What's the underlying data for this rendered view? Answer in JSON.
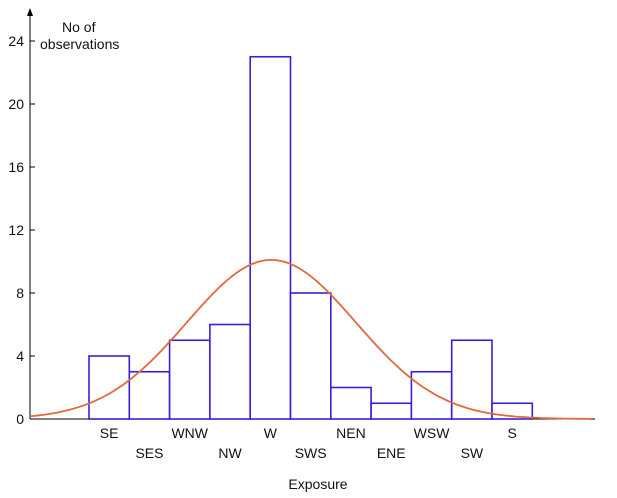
{
  "chart_data": {
    "type": "bar",
    "xlabel": "Exposure",
    "ylabel": "No of\nobservations",
    "ylim": [
      0,
      24
    ],
    "yticks": [
      0,
      4,
      8,
      12,
      16,
      20,
      24
    ],
    "categories": [
      "SE",
      "SES",
      "WNW",
      "NW",
      "W",
      "SWS",
      "NEN",
      "ENE",
      "WSW",
      "SW",
      "S"
    ],
    "values": [
      4,
      3,
      5,
      6,
      23,
      8,
      2,
      1,
      3,
      5,
      1
    ],
    "fit_curve": {
      "type": "normal",
      "peak": 10.1,
      "peak_category": "W",
      "sigma_categories": 2.1
    },
    "grid": false,
    "legend": "none"
  },
  "colors": {
    "bar_outline": "#3a1fd8",
    "bar_fill": "#ffffff",
    "curve": "#e06a3c",
    "axis": "#000000",
    "text": "#111111"
  }
}
